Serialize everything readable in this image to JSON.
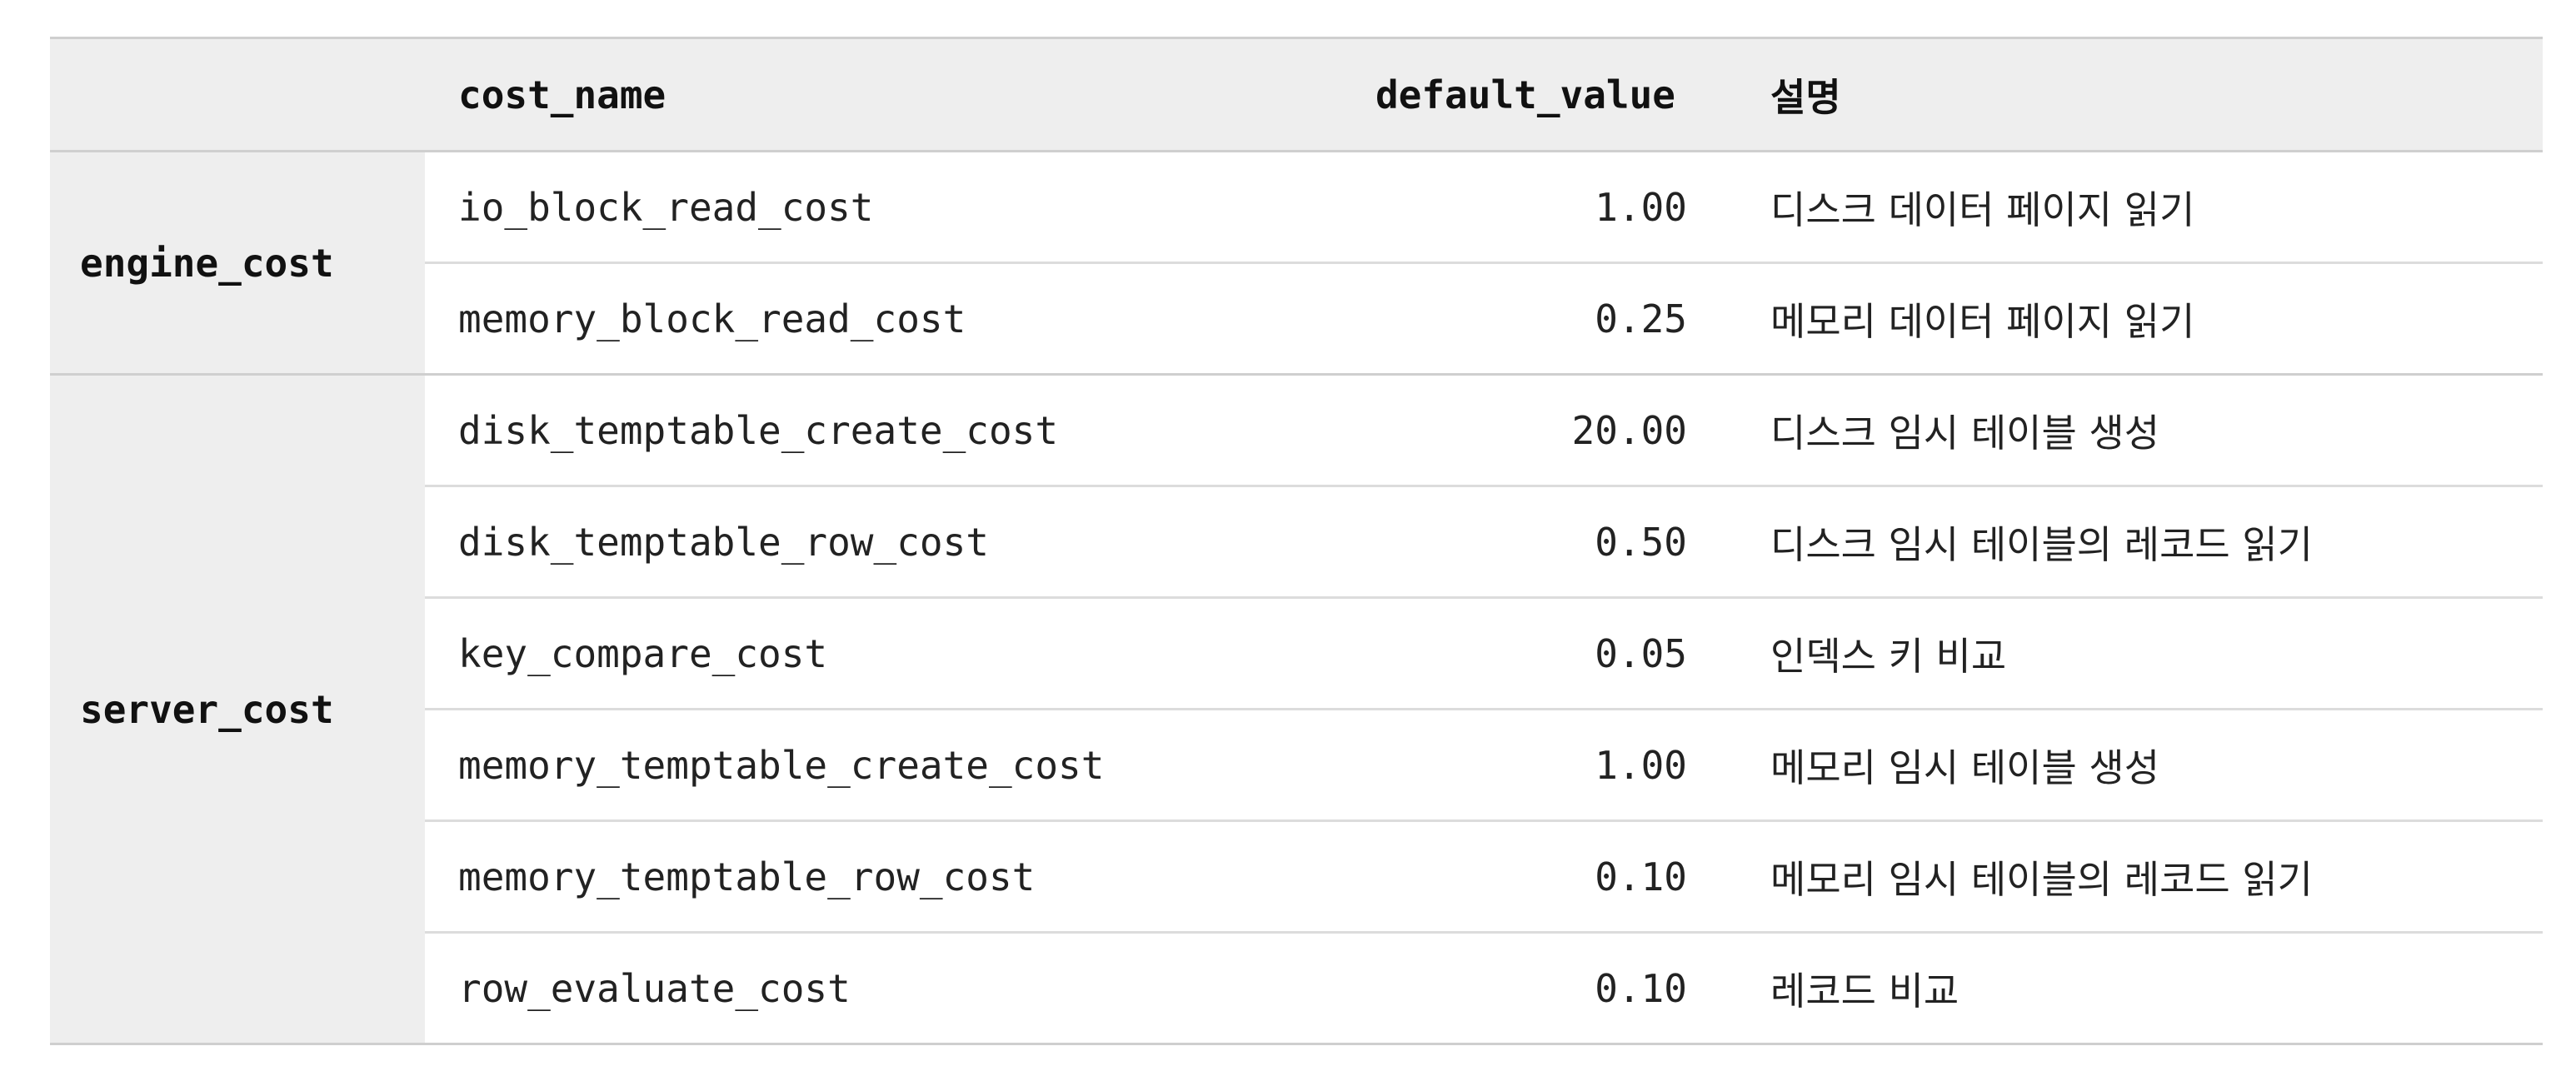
{
  "table": {
    "headers": {
      "group": "",
      "cost_name": "cost_name",
      "default_value": "default_value",
      "description": "설명"
    },
    "groups": [
      {
        "name": "engine_cost",
        "rows": [
          {
            "cost_name": "io_block_read_cost",
            "default_value": "1.00",
            "description": "디스크 데이터 페이지 읽기"
          },
          {
            "cost_name": "memory_block_read_cost",
            "default_value": "0.25",
            "description": "메모리 데이터 페이지 읽기"
          }
        ]
      },
      {
        "name": "server_cost",
        "rows": [
          {
            "cost_name": "disk_temptable_create_cost",
            "default_value": "20.00",
            "description": "디스크 임시 테이블 생성"
          },
          {
            "cost_name": "disk_temptable_row_cost",
            "default_value": "0.50",
            "description": "디스크 임시 테이블의 레코드 읽기"
          },
          {
            "cost_name": "key_compare_cost",
            "default_value": "0.05",
            "description": "인덱스 키 비교"
          },
          {
            "cost_name": "memory_temptable_create_cost",
            "default_value": "1.00",
            "description": "메모리 임시 테이블 생성"
          },
          {
            "cost_name": "memory_temptable_row_cost",
            "default_value": "0.10",
            "description": "메모리 임시 테이블의 레코드 읽기"
          },
          {
            "cost_name": "row_evaluate_cost",
            "default_value": "0.10",
            "description": "레코드 비교"
          }
        ]
      }
    ]
  }
}
